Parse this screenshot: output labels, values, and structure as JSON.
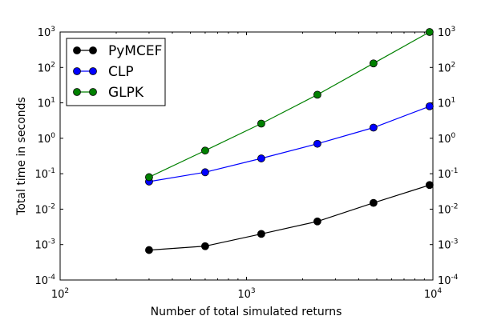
{
  "chart_data": {
    "type": "line",
    "xlabel": "Number of total simulated returns",
    "ylabel": "Total time in seconds",
    "xscale": "log",
    "yscale": "log",
    "xlim": [
      100,
      10000
    ],
    "ylim": [
      0.0001,
      1000
    ],
    "x_ticks": [
      {
        "base": "10",
        "exp": "2",
        "value": 100
      },
      {
        "base": "10",
        "exp": "3",
        "value": 1000
      },
      {
        "base": "10",
        "exp": "4",
        "value": 10000
      }
    ],
    "y_ticks": [
      {
        "base": "10",
        "exp": "-4",
        "value": 0.0001
      },
      {
        "base": "10",
        "exp": "-3",
        "value": 0.001
      },
      {
        "base": "10",
        "exp": "-2",
        "value": 0.01
      },
      {
        "base": "10",
        "exp": "-1",
        "value": 0.1
      },
      {
        "base": "10",
        "exp": "0",
        "value": 1
      },
      {
        "base": "10",
        "exp": "1",
        "value": 10
      },
      {
        "base": "10",
        "exp": "2",
        "value": 100
      },
      {
        "base": "10",
        "exp": "3",
        "value": 1000
      }
    ],
    "x": [
      300,
      600,
      1200,
      2400,
      4800,
      9600
    ],
    "series": [
      {
        "name": "PyMCEF",
        "color": "#000000",
        "values": [
          0.0007,
          0.0009,
          0.002,
          0.0045,
          0.015,
          0.048
        ]
      },
      {
        "name": "CLP",
        "color": "#0000ff",
        "values": [
          0.06,
          0.11,
          0.27,
          0.7,
          2.0,
          8.0
        ]
      },
      {
        "name": "GLPK",
        "color": "#008000",
        "values": [
          0.08,
          0.45,
          2.6,
          17,
          130,
          1000
        ]
      }
    ],
    "legend": "top-left",
    "grid": false
  }
}
